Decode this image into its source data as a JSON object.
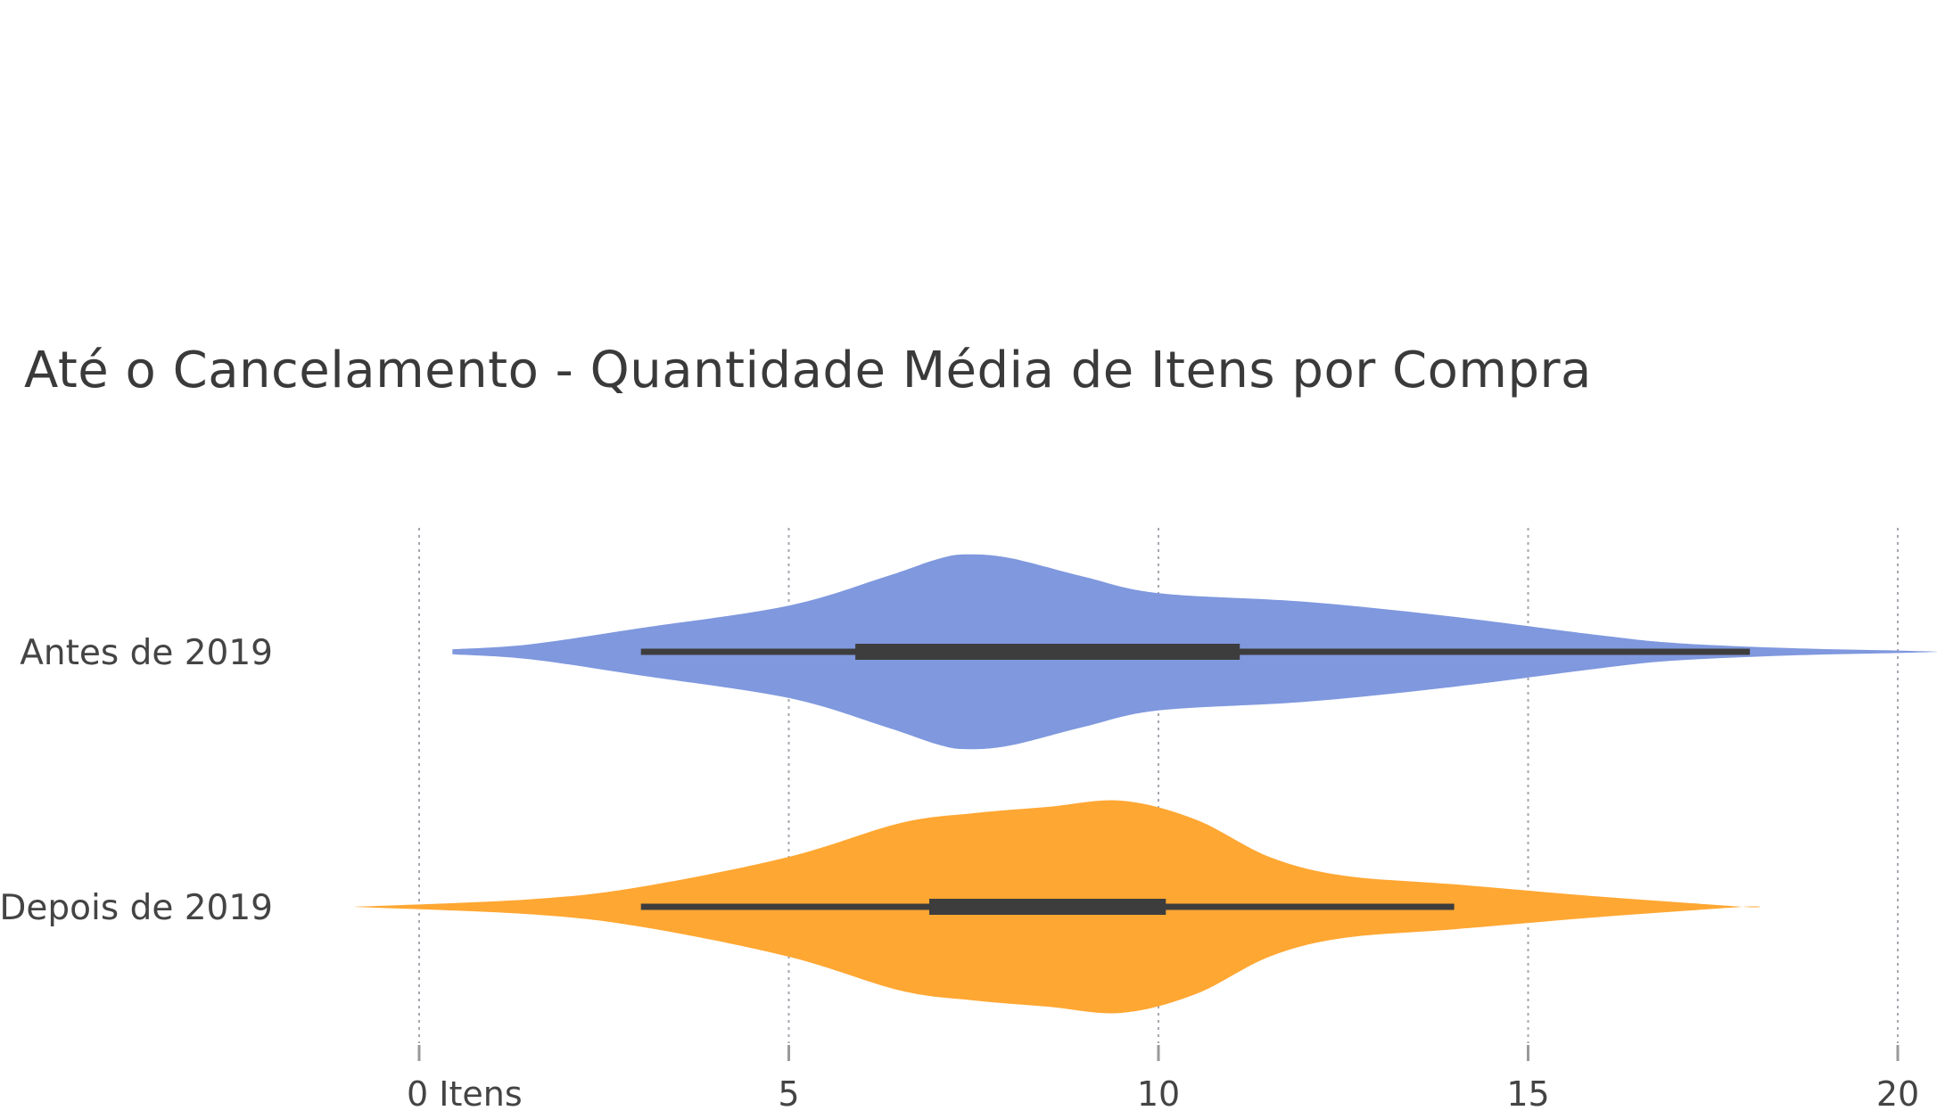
{
  "chart_data": {
    "type": "violin",
    "title": "Até o Cancelamento - Quantidade Média de Itens por Compra",
    "orientation": "horizontal",
    "xlabel": "",
    "ylabel": "",
    "xlim": [
      -4,
      20.6
    ],
    "xticks": [
      {
        "value": 0,
        "label": "0 Itens"
      },
      {
        "value": 5,
        "label": "5"
      },
      {
        "value": 10,
        "label": "10"
      },
      {
        "value": 15,
        "label": "15"
      },
      {
        "value": 20,
        "label": "20"
      }
    ],
    "grid": "vertical dotted",
    "legend": "none",
    "categories": [
      "Antes de 2019",
      "Depois de 2019"
    ],
    "series": [
      {
        "category": "Antes de 2019",
        "color": "#7f98de",
        "whisker": [
          3,
          18
        ],
        "quartiles": [
          5.9,
          11.1
        ],
        "density": [
          [
            0.45,
            0.02
          ],
          [
            1.5,
            0.06
          ],
          [
            3.0,
            0.19
          ],
          [
            5.0,
            0.37
          ],
          [
            6.3,
            0.6
          ],
          [
            7.0,
            0.74
          ],
          [
            7.4,
            0.78
          ],
          [
            8.0,
            0.75
          ],
          [
            9.0,
            0.6
          ],
          [
            10.0,
            0.47
          ],
          [
            12.0,
            0.4
          ],
          [
            14.0,
            0.28
          ],
          [
            16.0,
            0.13
          ],
          [
            17.0,
            0.07
          ],
          [
            18.5,
            0.03
          ],
          [
            20.0,
            0.01
          ],
          [
            20.6,
            0.0
          ]
        ]
      },
      {
        "category": "Depois de 2019",
        "color": "#ffa733",
        "whisker": [
          3,
          14
        ],
        "quartiles": [
          6.9,
          10.1
        ],
        "density": [
          [
            -0.9,
            0.0
          ],
          [
            1.5,
            0.06
          ],
          [
            3.0,
            0.16
          ],
          [
            5.0,
            0.4
          ],
          [
            6.5,
            0.67
          ],
          [
            7.5,
            0.75
          ],
          [
            8.5,
            0.8
          ],
          [
            9.5,
            0.85
          ],
          [
            10.5,
            0.7
          ],
          [
            11.5,
            0.4
          ],
          [
            12.5,
            0.25
          ],
          [
            14.0,
            0.18
          ],
          [
            16.0,
            0.08
          ],
          [
            17.9,
            0.0
          ]
        ]
      }
    ]
  }
}
